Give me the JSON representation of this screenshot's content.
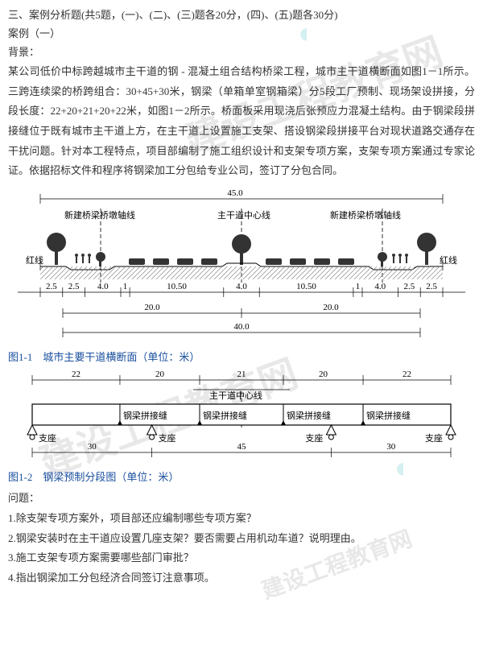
{
  "header": {
    "section_title": "三、案例分析题(共5题，(一)、(二)、(三)题各20分，(四)、(五)题各30分)",
    "case_label": "案例（一）",
    "bg_label": "背景："
  },
  "background_text": "某公司低价中标跨越城市主干道的钢 - 混凝土组合结构桥梁工程，城市主干道横断面如图1－1所示。三跨连续梁的桥跨组合：30+45+30米，钢梁（单箱单室钢箱梁）分5段工厂预制、现场架设拼接，分段长度：22+20+21+20+22米，如图1－2所示。桥面板采用现浇后张预应力混凝土结构。由于钢梁段拼接缝位于既有城市主干道上方，在主干道上设置施工支架、搭设钢梁段拼接平台对现状道路交通存在干扰问题。针对本工程特点，项目部编制了施工组织设计和支架专项方案，支架专项方案通过专家论证。依据招标文件和程序将钢梁加工分包给专业公司，签订了分包合同。",
  "fig1": {
    "caption": "图1-1　城市主要干道横断面（单位：米）",
    "top_dim": "45.0",
    "labels": {
      "left_pier": "新建桥梁桥墩轴线",
      "centerline": "主干道中心线",
      "right_pier": "新建桥梁桥墩轴线",
      "redline": "红线"
    },
    "dims_bottom_row1": [
      "2.5",
      "2.5",
      "4.0",
      "1",
      "10.50",
      "4.0",
      "10.50",
      "1",
      "4.0",
      "2.5",
      "2.5"
    ],
    "dims_bottom_row2_left": "20.0",
    "dims_bottom_row2_right": "20.0",
    "dims_bottom_row3": "40.0",
    "colors": {
      "line": "#000000",
      "ground": "#555555",
      "tree": "#333333",
      "car": "#333333"
    }
  },
  "fig2": {
    "caption": "图1-2　钢梁预制分段图（单位：米）",
    "top_dims": [
      "22",
      "20",
      "21",
      "20",
      "22"
    ],
    "center_label": "主干道中心线",
    "seam_label": "钢梁拼接缝",
    "support_label": "支座",
    "span_dims": [
      "30",
      "45",
      "30"
    ],
    "colors": {
      "line": "#000000",
      "fill": "#ffffff"
    }
  },
  "questions": {
    "header": "问题：",
    "q1": "1.除支架专项方案外，项目部还应编制哪些专项方案？",
    "q2": "2.钢梁安装时在主干道应设置几座支架？要否需要占用机动车道？说明理由。",
    "q3": "3.施工支架专项方案需要哪些部门审批？",
    "q4": "4.指出钢梁加工分包经济合同签订注意事项。"
  },
  "styles": {
    "body_font_size": 13,
    "caption_color": "#1a4f9e",
    "text_color": "#333333",
    "bg_color": "#ffffff"
  }
}
